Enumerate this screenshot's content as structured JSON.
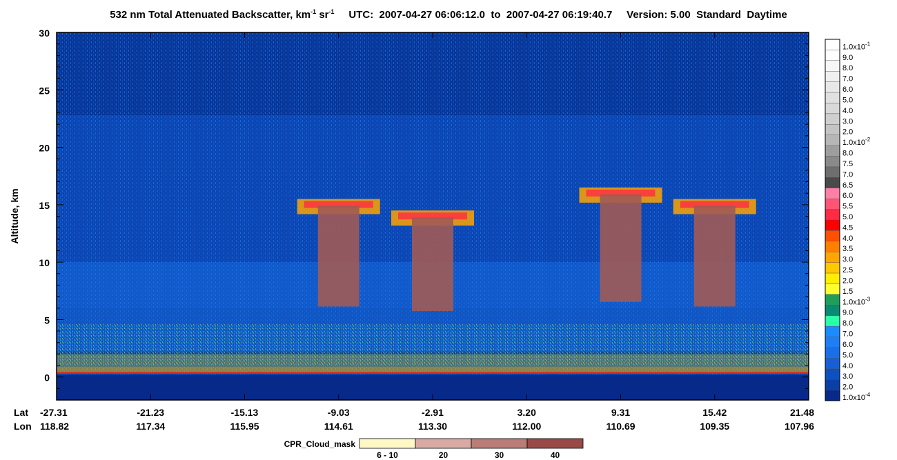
{
  "header": {
    "title_main": "532 nm Total Attenuated Backscatter, km",
    "title_sup1": "-1",
    "title_sr": " sr",
    "title_sup2": "-1",
    "utc_label": "UTC:",
    "utc_start": "2007-04-27 06:06:12.0",
    "to_label": "to",
    "utc_end": "2007-04-27 06:19:40.7",
    "version_label": "Version: 5.00",
    "product": "Standard",
    "mode": "Daytime"
  },
  "colors": {
    "background_profile": "#0a3fa6",
    "cloud_mask": "#a15a55",
    "surface_line": "#e0201a"
  },
  "chart_data": {
    "type": "heatmap",
    "title": "532 nm Total Attenuated Backscatter, km-1 sr-1",
    "ylabel": "Altitude, km",
    "ylim": [
      -2,
      30
    ],
    "y_ticks": [
      0,
      5,
      10,
      15,
      20,
      25,
      30
    ],
    "x_row_labels": [
      "Lat",
      "Lon"
    ],
    "lat_ticks": [
      "-27.31",
      "-21.23",
      "-15.13",
      "-9.03",
      "-2.91",
      "3.20",
      "9.31",
      "15.42",
      "21.48"
    ],
    "lon_ticks": [
      "118.82",
      "117.34",
      "115.95",
      "114.61",
      "113.30",
      "112.00",
      "110.69",
      "109.35",
      "107.96"
    ],
    "colorbar": {
      "orientation": "vertical",
      "placement": "right",
      "bins": [
        {
          "label": "1.0x10",
          "sup": "-1",
          "color": "#ffffff"
        },
        {
          "label": "9.0",
          "color": "#fdfdfd"
        },
        {
          "label": "8.0",
          "color": "#f7f7f7"
        },
        {
          "label": "7.0",
          "color": "#f0f0f0"
        },
        {
          "label": "6.0",
          "color": "#e8e8e8"
        },
        {
          "label": "5.0",
          "color": "#e0e0e0"
        },
        {
          "label": "4.0",
          "color": "#d8d8d8"
        },
        {
          "label": "3.0",
          "color": "#cfcfcf"
        },
        {
          "label": "2.0",
          "color": "#c4c4c4"
        },
        {
          "label": "1.0x10",
          "sup": "-2",
          "color": "#b6b6b6"
        },
        {
          "label": "8.0",
          "color": "#9e9e9e"
        },
        {
          "label": "7.5",
          "color": "#8a8a8a"
        },
        {
          "label": "7.0",
          "color": "#6e6e6e"
        },
        {
          "label": "6.5",
          "color": "#4a4a4a"
        },
        {
          "label": "6.0",
          "color": "#ff7fa6"
        },
        {
          "label": "5.5",
          "color": "#ff5575"
        },
        {
          "label": "5.0",
          "color": "#ff2a45"
        },
        {
          "label": "4.5",
          "color": "#ff0000"
        },
        {
          "label": "4.0",
          "color": "#ff5000"
        },
        {
          "label": "3.5",
          "color": "#ff7f00"
        },
        {
          "label": "3.0",
          "color": "#ffa500"
        },
        {
          "label": "2.5",
          "color": "#ffc800"
        },
        {
          "label": "2.0",
          "color": "#ffee00"
        },
        {
          "label": "1.5",
          "color": "#ffff30"
        },
        {
          "label": "1.0x10",
          "sup": "-3",
          "color": "#1f9e5a"
        },
        {
          "label": "9.0",
          "color": "#0a8a70"
        },
        {
          "label": "8.0",
          "color": "#2affa8"
        },
        {
          "label": "7.0",
          "color": "#1a8cff"
        },
        {
          "label": "6.0",
          "color": "#1e7ef5"
        },
        {
          "label": "5.0",
          "color": "#1a6fe8"
        },
        {
          "label": "4.0",
          "color": "#1560d8"
        },
        {
          "label": "3.0",
          "color": "#0f4fc0"
        },
        {
          "label": "2.0",
          "color": "#0a3fa6"
        },
        {
          "label": "1.0x10",
          "sup": "-4",
          "color": "#07298a"
        }
      ]
    },
    "cloud_mask_legend": {
      "label": "CPR_Cloud_mask",
      "placement": "bottom",
      "bins": [
        {
          "label": "6 - 10",
          "color": "#fdf8c6"
        },
        {
          "label": "20",
          "color": "#d9aaa4"
        },
        {
          "label": "30",
          "color": "#b97c77"
        },
        {
          "label": "40",
          "color": "#9a4a46"
        }
      ]
    },
    "features": {
      "cloud_tops_km": [
        {
          "lat": "-9.03",
          "top": 15.5
        },
        {
          "lat": "-2.91",
          "top": 14.5
        },
        {
          "lat": "9.31",
          "top": 16.5
        },
        {
          "lat": "15.42",
          "top": 15.5
        }
      ],
      "surface_altitude_km": 0.3,
      "boundary_layer_top_km": 2
    }
  }
}
